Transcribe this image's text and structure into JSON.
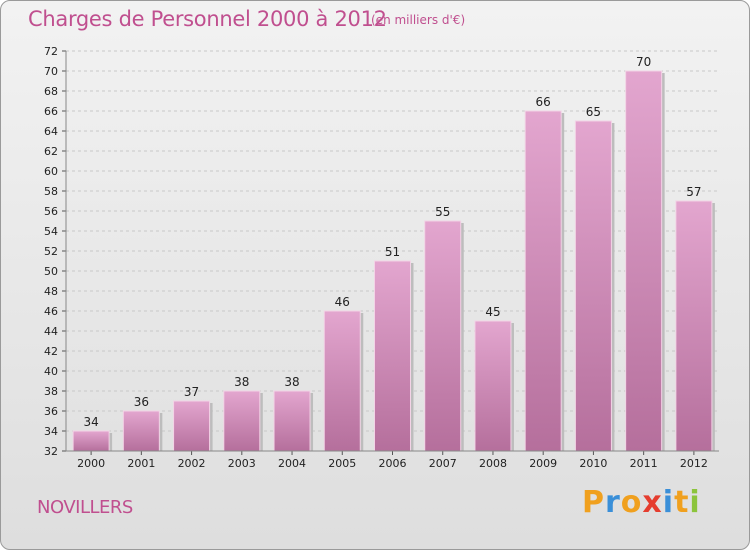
{
  "title": "Charges de Personnel 2000 à 2012",
  "subtitle": "(en milliers d'€)",
  "commune": "NOVILLERS",
  "logo": {
    "letters": [
      "P",
      "r",
      "o",
      "x",
      "i",
      "t",
      "i"
    ],
    "colors": [
      "#f0a01e",
      "#3a8fd8",
      "#f0a01e",
      "#e53d2f",
      "#3a8fd8",
      "#f0a01e",
      "#8cc43c"
    ]
  },
  "colors": {
    "bar_top": "#e3a6cf",
    "bar_bottom": "#b56f9c",
    "title": "#c04f8f"
  },
  "chart_data": {
    "type": "bar",
    "categories": [
      "2000",
      "2001",
      "2002",
      "2003",
      "2004",
      "2005",
      "2006",
      "2007",
      "2008",
      "2009",
      "2010",
      "2011",
      "2012"
    ],
    "values": [
      34,
      36,
      37,
      38,
      38,
      46,
      51,
      55,
      45,
      66,
      65,
      70,
      57
    ],
    "title": "Charges de Personnel 2000 à 2012",
    "xlabel": "",
    "ylabel": "",
    "ylim": [
      32,
      72
    ],
    "yticks": [
      32,
      34,
      36,
      38,
      40,
      42,
      44,
      46,
      48,
      50,
      52,
      54,
      56,
      58,
      60,
      62,
      64,
      66,
      68,
      70,
      72
    ],
    "grid": true,
    "legend": "none"
  }
}
